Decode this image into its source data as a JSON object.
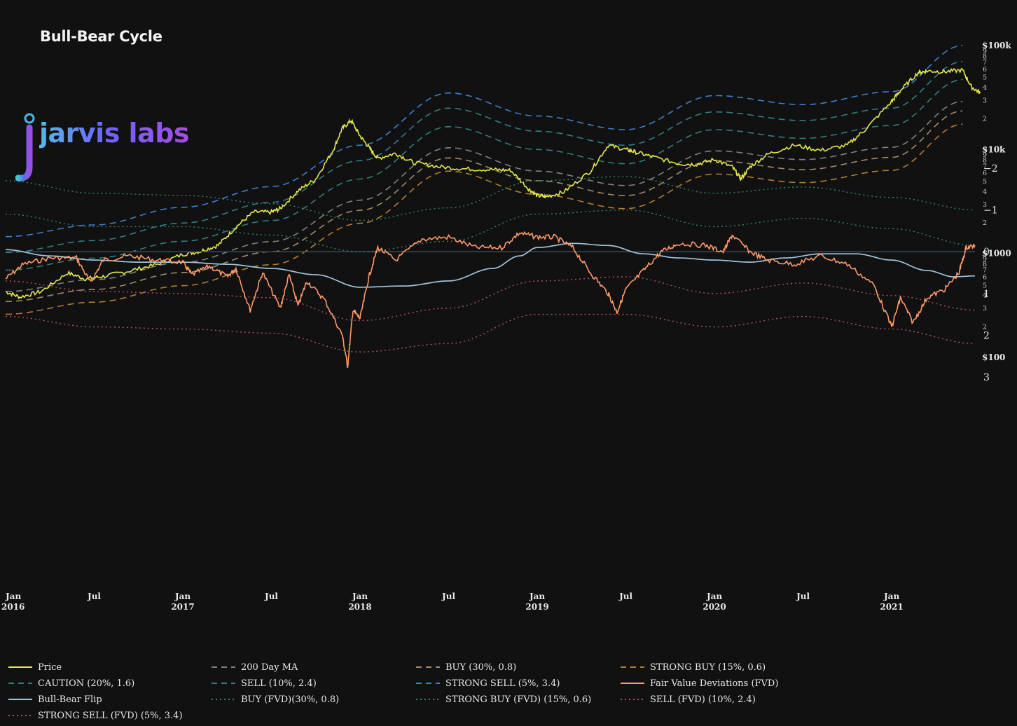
{
  "title": "Bull-Bear Cycle",
  "logo": {
    "text": "jarvis labs"
  },
  "colors": {
    "background": "#111111",
    "price": "#e6e84a",
    "ma200": "#808080",
    "buy": "#a08a6a",
    "strong_buy": "#b47c2e",
    "caution": "#2e7f7a",
    "sell": "#2e7f86",
    "strong_sell": "#3b7fd0",
    "fvd": "#ff9a66",
    "flip": "#9ec3dd",
    "buy_fvd": "#2e8a6a",
    "strong_buy_fvd": "#2e8a6a",
    "sell_fvd": "#b3507a",
    "strong_sell_fvd": "#b3507a"
  },
  "chart_data": [
    {
      "type": "line",
      "title": "Bull-Bear Cycle",
      "yscale": "log",
      "ylim": [
        100,
        100000
      ],
      "x_ticks": [
        {
          "label": "Jan",
          "year": "2016",
          "t": 0
        },
        {
          "label": "Jul",
          "year": "",
          "t": 0.5
        },
        {
          "label": "Jan",
          "year": "2017",
          "t": 1
        },
        {
          "label": "Jul",
          "year": "",
          "t": 1.5
        },
        {
          "label": "Jan",
          "year": "2018",
          "t": 2
        },
        {
          "label": "Jul",
          "year": "",
          "t": 2.5
        },
        {
          "label": "Jan",
          "year": "2019",
          "t": 3
        },
        {
          "label": "Jul",
          "year": "",
          "t": 3.5
        },
        {
          "label": "Jan",
          "year": "2020",
          "t": 4
        },
        {
          "label": "Jul",
          "year": "",
          "t": 4.5
        },
        {
          "label": "Jan",
          "year": "2021",
          "t": 5
        }
      ],
      "y_major_ticks": [
        {
          "label": "$100",
          "value": 100
        },
        {
          "label": "$1000",
          "value": 1000
        },
        {
          "label": "$10k",
          "value": 10000
        },
        {
          "label": "$100k",
          "value": 100000
        }
      ],
      "y_minor_labels": [
        "2",
        "3",
        "4",
        "5",
        "6",
        "7",
        "8",
        "9"
      ],
      "price": {
        "t": [
          0,
          0.08,
          0.2,
          0.35,
          0.45,
          0.55,
          0.7,
          0.85,
          1.0,
          1.1,
          1.2,
          1.3,
          1.4,
          1.5,
          1.55,
          1.65,
          1.75,
          1.85,
          1.9,
          1.95,
          2.0,
          2.05,
          2.1,
          2.2,
          2.3,
          2.45,
          2.6,
          2.75,
          2.85,
          2.95,
          3.0,
          3.05,
          3.15,
          3.3,
          3.4,
          3.5,
          3.55,
          3.65,
          3.8,
          3.9,
          4.0,
          4.1,
          4.15,
          4.2,
          4.3,
          4.45,
          4.6,
          4.75,
          4.85,
          5.0,
          5.05,
          5.15,
          5.2,
          5.3,
          5.4,
          5.45,
          5.5
        ],
        "values": [
          430,
          380,
          430,
          650,
          570,
          600,
          680,
          780,
          980,
          1050,
          1200,
          1800,
          2500,
          2500,
          2700,
          4000,
          5200,
          10000,
          16000,
          19000,
          13500,
          10500,
          8200,
          9200,
          7500,
          6800,
          6500,
          6400,
          6300,
          4200,
          3600,
          3500,
          3900,
          6200,
          11000,
          10000,
          9500,
          8500,
          7300,
          7200,
          8000,
          6800,
          5200,
          6800,
          9000,
          11000,
          9800,
          11000,
          15500,
          29000,
          37000,
          55000,
          57000,
          56000,
          58000,
          40000,
          35000
        ]
      },
      "bands": [
        {
          "name": "STRONG SELL (5%, 3.4)",
          "t": [
            0,
            0.5,
            1,
            1.5,
            2,
            2.5,
            3,
            3.5,
            4,
            4.5,
            5,
            5.4
          ],
          "values": [
            1450,
            1880,
            2780,
            4400,
            11000,
            35000,
            21000,
            15500,
            33000,
            27000,
            36000,
            100000
          ]
        },
        {
          "name": "SELL (10%, 2.4)",
          "t": [
            0,
            0.5,
            1,
            1.5,
            2,
            2.5,
            3,
            3.5,
            4,
            4.5,
            5,
            5.4
          ],
          "values": [
            1020,
            1330,
            1960,
            3100,
            7800,
            25000,
            15000,
            11000,
            23000,
            19000,
            25000,
            70000
          ]
        },
        {
          "name": "CAUTION (20%, 1.6)",
          "t": [
            0,
            0.5,
            1,
            1.5,
            2,
            2.5,
            3,
            3.5,
            4,
            4.5,
            5,
            5.4
          ],
          "values": [
            690,
            900,
            1310,
            2070,
            5200,
            16600,
            10000,
            7300,
            15500,
            12800,
            17000,
            47000
          ]
        },
        {
          "name": "200 Day MA",
          "t": [
            0,
            0.5,
            1,
            1.5,
            2,
            2.5,
            3,
            3.5,
            4,
            4.5,
            5,
            5.4
          ],
          "values": [
            430,
            560,
            820,
            1300,
            3250,
            10400,
            6200,
            4500,
            9700,
            8000,
            10500,
            29000
          ]
        },
        {
          "name": "BUY (30%, 0.8)",
          "t": [
            0,
            0.5,
            1,
            1.5,
            2,
            2.5,
            3,
            3.5,
            4,
            4.5,
            5,
            5.4
          ],
          "values": [
            345,
            450,
            655,
            1040,
            2600,
            8300,
            5000,
            3600,
            7800,
            6400,
            8400,
            23500
          ]
        },
        {
          "name": "STRONG BUY (15%, 0.6)",
          "t": [
            0,
            0.5,
            1,
            1.5,
            2,
            2.5,
            3,
            3.5,
            4,
            4.5,
            5,
            5.4
          ],
          "values": [
            260,
            340,
            490,
            780,
            1950,
            6200,
            3700,
            2700,
            5800,
            4800,
            6300,
            17500
          ]
        }
      ]
    },
    {
      "type": "line",
      "ylim": [
        -2,
        3
      ],
      "y_ticks": [
        "3",
        "2",
        "1",
        "0",
        "−1",
        "−2"
      ],
      "fvd": {
        "name": "Fair Value Deviations (FVD)",
        "t": [
          0,
          0.1,
          0.25,
          0.4,
          0.48,
          0.55,
          0.7,
          0.85,
          1.0,
          1.05,
          1.15,
          1.25,
          1.3,
          1.38,
          1.45,
          1.55,
          1.6,
          1.65,
          1.7,
          1.8,
          1.9,
          1.93,
          1.96,
          2.0,
          2.05,
          2.1,
          2.2,
          2.35,
          2.5,
          2.65,
          2.8,
          2.9,
          3.0,
          3.1,
          3.2,
          3.3,
          3.4,
          3.45,
          3.5,
          3.6,
          3.7,
          3.8,
          3.95,
          4.05,
          4.1,
          4.2,
          4.3,
          4.45,
          4.6,
          4.75,
          4.9,
          5.0,
          5.05,
          5.12,
          5.2,
          5.3,
          5.38,
          5.42,
          5.47
        ],
        "values": [
          0.65,
          0.3,
          0.15,
          0.15,
          0.75,
          0.2,
          0.1,
          0.2,
          0.25,
          0.55,
          0.35,
          0.6,
          0.4,
          1.4,
          0.5,
          1.35,
          0.55,
          1.3,
          0.7,
          1.15,
          2.0,
          2.75,
          1.4,
          1.6,
          0.6,
          -0.1,
          0.2,
          -0.3,
          -0.35,
          -0.1,
          -0.1,
          -0.45,
          -0.35,
          -0.35,
          -0.1,
          0.5,
          1.0,
          1.45,
          0.9,
          0.45,
          0.0,
          -0.2,
          -0.15,
          0.0,
          -0.4,
          0.0,
          0.2,
          0.3,
          0.1,
          0.3,
          0.8,
          1.8,
          1.1,
          1.7,
          1.1,
          0.9,
          0.5,
          -0.1,
          -0.15
        ]
      },
      "flip": {
        "name": "Bull-Bear Flip",
        "t": [
          0,
          0.25,
          0.5,
          0.75,
          1.0,
          1.25,
          1.5,
          1.75,
          2.0,
          2.25,
          2.5,
          2.75,
          2.9,
          3.0,
          3.2,
          3.4,
          3.6,
          3.8,
          4.0,
          4.2,
          4.4,
          4.6,
          4.8,
          5.0,
          5.2,
          5.35,
          5.47
        ],
        "values": [
          -0.05,
          0.1,
          0.2,
          0.25,
          0.25,
          0.3,
          0.4,
          0.55,
          0.85,
          0.82,
          0.7,
          0.4,
          0.1,
          -0.1,
          -0.2,
          -0.15,
          0.05,
          0.15,
          0.2,
          0.25,
          0.15,
          0.05,
          0.05,
          0.2,
          0.45,
          0.6,
          0.58
        ]
      },
      "bands": [
        {
          "name": "STRONG SELL (FVD) (5%, 3.4)",
          "t": [
            0,
            0.5,
            1,
            1.5,
            2,
            2.5,
            3,
            3.5,
            4,
            4.5,
            5,
            5.47
          ],
          "values": [
            1.55,
            1.8,
            1.85,
            1.95,
            2.4,
            2.2,
            1.5,
            1.5,
            1.8,
            1.55,
            1.85,
            2.2
          ]
        },
        {
          "name": "SELL (FVD) (10%, 2.4)",
          "t": [
            0,
            0.5,
            1,
            1.5,
            2,
            2.5,
            3,
            3.5,
            4,
            4.5,
            5,
            5.47
          ],
          "values": [
            0.7,
            0.95,
            1.0,
            1.1,
            1.65,
            1.35,
            0.7,
            0.6,
            1.0,
            0.75,
            1.05,
            1.4
          ]
        },
        {
          "name": "BUY (FVD)(30%, 0.8)",
          "t": [
            0,
            0.5,
            1,
            1.5,
            2,
            2.5,
            3,
            3.5,
            4,
            4.5,
            5,
            5.47
          ],
          "values": [
            -0.9,
            -0.6,
            -0.6,
            -0.4,
            0.0,
            -0.25,
            -0.9,
            -1.0,
            -0.6,
            -0.8,
            -0.55,
            -0.15
          ]
        },
        {
          "name": "STRONG BUY (FVD) (15%, 0.6)",
          "t": [
            0,
            0.5,
            1,
            1.5,
            2,
            2.5,
            3,
            3.5,
            4,
            4.5,
            5,
            5.47
          ],
          "values": [
            -1.7,
            -1.4,
            -1.35,
            -1.15,
            -0.75,
            -1.05,
            -1.7,
            -1.8,
            -1.4,
            -1.55,
            -1.3,
            -1.0
          ]
        }
      ]
    }
  ],
  "legend": [
    {
      "label": "Price",
      "key": "price",
      "style": "solid"
    },
    {
      "label": "200 Day MA",
      "key": "ma200",
      "style": "dash"
    },
    {
      "label": "BUY (30%, 0.8)",
      "key": "buy",
      "style": "dash"
    },
    {
      "label": "STRONG BUY (15%, 0.6)",
      "key": "strong_buy",
      "style": "dash"
    },
    {
      "label": "CAUTION (20%, 1.6)",
      "key": "caution",
      "style": "dash"
    },
    {
      "label": "SELL (10%, 2.4)",
      "key": "sell",
      "style": "dash"
    },
    {
      "label": "STRONG SELL (5%, 3.4)",
      "key": "strong_sell",
      "style": "dash"
    },
    {
      "label": "Fair Value Deviations (FVD)",
      "key": "fvd",
      "style": "solid"
    },
    {
      "label": "Bull-Bear Flip",
      "key": "flip",
      "style": "solid"
    },
    {
      "label": "BUY (FVD)(30%, 0.8)",
      "key": "buy_fvd",
      "style": "dot"
    },
    {
      "label": "STRONG BUY (FVD) (15%, 0.6)",
      "key": "strong_buy_fvd",
      "style": "dot"
    },
    {
      "label": "SELL (FVD) (10%, 2.4)",
      "key": "sell_fvd",
      "style": "dot"
    },
    {
      "label": "STRONG SELL (FVD) (5%, 3.4)",
      "key": "strong_sell_fvd",
      "style": "dot"
    }
  ]
}
